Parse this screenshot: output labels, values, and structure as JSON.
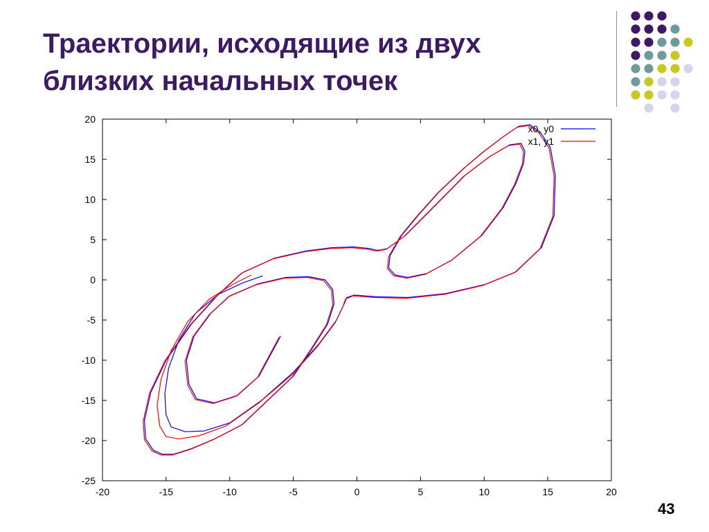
{
  "slide": {
    "title_lines": [
      "Траектории, исходящие из двух",
      "близких начальных точек"
    ],
    "page_number": "43"
  },
  "colors": {
    "title": "#3d1a66",
    "dot_purple": "#3d1a66",
    "dot_teal": "#6f9a9a",
    "dot_yellow": "#c8c81e",
    "dot_lavender": "#d4d4ea",
    "series_blue": "#0000ff",
    "series_red": "#ff0000"
  },
  "decoration": {
    "dot_grid": [
      [
        "purple",
        "purple",
        "purple",
        "",
        ""
      ],
      [
        "purple",
        "purple",
        "purple",
        "teal",
        ""
      ],
      [
        "purple",
        "purple",
        "teal",
        "teal",
        "yellow"
      ],
      [
        "purple",
        "teal",
        "teal",
        "yellow",
        ""
      ],
      [
        "teal",
        "teal",
        "yellow",
        "yellow",
        "lavender"
      ],
      [
        "teal",
        "yellow",
        "lavender",
        "lavender",
        ""
      ],
      [
        "yellow",
        "yellow",
        "lavender",
        "lavender",
        ""
      ],
      [
        "",
        "lavender",
        "",
        "lavender",
        ""
      ]
    ]
  },
  "chart_data": {
    "type": "line",
    "title": "",
    "xlabel": "",
    "ylabel": "",
    "xlim": [
      -20,
      20
    ],
    "ylim": [
      -25,
      20
    ],
    "xticks": [
      "-20",
      "-15",
      "-10",
      "-5",
      "0",
      "5",
      "10",
      "15",
      "20"
    ],
    "yticks": [
      "20",
      "15",
      "10",
      "5",
      "0",
      "-5",
      "-10",
      "-15",
      "-20",
      "-25"
    ],
    "grid": false,
    "legend_position": "top-right",
    "series": [
      {
        "name": "x0, y0",
        "color": "#0000ff",
        "x": [
          -7.4,
          -9.0,
          -10.9,
          -12.7,
          -14.0,
          -14.8,
          -15.1,
          -15.0,
          -14.6,
          -13.5,
          -12.0,
          -10.0,
          -7.5,
          -5.0,
          -3.0,
          -1.6,
          -1.0,
          -0.8,
          -0.2,
          1.5,
          4.0,
          7.0,
          10.0,
          12.5,
          14.5,
          15.5,
          15.6,
          15.2,
          14.4,
          13.6,
          12.7,
          11.5,
          10.0,
          8.5,
          6.5,
          4.8,
          3.5,
          2.6,
          2.5,
          3.0,
          4.0,
          5.5,
          7.5,
          9.8,
          11.5,
          12.5,
          13.1,
          13.2,
          12.9,
          12.0,
          10.5,
          8.5,
          6.0,
          3.8,
          2.4,
          1.8,
          1.5,
          1.0,
          -0.3,
          -2.0,
          -4.0,
          -6.5,
          -9.0,
          -11.0,
          -13.0,
          -15.0,
          -16.2,
          -16.7,
          -16.6,
          -16.0,
          -15.3,
          -14.4,
          -13.0,
          -11.2,
          -9.0,
          -7.0,
          -5.0,
          -3.5,
          -2.3,
          -1.8,
          -1.9,
          -2.5,
          -3.8,
          -5.6,
          -7.8,
          -10.0,
          -11.5,
          -12.8,
          -13.4,
          -13.2,
          -12.6,
          -11.2,
          -9.4,
          -7.7,
          -6.0
        ],
        "y": [
          0.5,
          -0.4,
          -1.8,
          -4.2,
          -7.5,
          -11.0,
          -14.2,
          -16.8,
          -18.3,
          -18.9,
          -18.8,
          -17.8,
          -15.0,
          -11.5,
          -8.0,
          -5.0,
          -3.0,
          -2.2,
          -1.9,
          -2.1,
          -2.2,
          -1.7,
          -0.6,
          1.0,
          4.0,
          8.0,
          13.0,
          16.5,
          18.4,
          19.3,
          19.1,
          17.8,
          16.0,
          14.0,
          11.0,
          8.0,
          5.5,
          3.0,
          1.5,
          0.6,
          0.3,
          0.8,
          2.5,
          5.5,
          9.0,
          12.0,
          14.5,
          16.0,
          17.0,
          16.8,
          15.4,
          13.0,
          9.0,
          5.5,
          3.9,
          3.7,
          3.7,
          3.9,
          4.1,
          4.0,
          3.6,
          2.7,
          0.9,
          -2.0,
          -5.5,
          -10.0,
          -14.0,
          -17.5,
          -19.8,
          -21.2,
          -21.7,
          -21.7,
          -21.0,
          -19.8,
          -18.0,
          -15.0,
          -12.0,
          -8.5,
          -5.5,
          -3.0,
          -1.2,
          0.0,
          0.4,
          0.3,
          -0.5,
          -2.0,
          -4.2,
          -7.0,
          -10.0,
          -13.0,
          -14.8,
          -15.3,
          -14.4,
          -12.0,
          -7.0
        ]
      },
      {
        "name": "x1, y1",
        "color": "#ff0000",
        "x": [
          -8.3,
          -9.8,
          -11.6,
          -13.3,
          -14.6,
          -15.4,
          -15.7,
          -15.5,
          -15.0,
          -14.0,
          -12.4,
          -10.3,
          -7.7,
          -5.1,
          -3.1,
          -1.7,
          -1.1,
          -0.9,
          -0.3,
          1.4,
          3.9,
          6.9,
          9.9,
          12.4,
          14.4,
          15.4,
          15.5,
          15.1,
          14.3,
          13.5,
          12.6,
          11.4,
          9.9,
          8.4,
          6.4,
          4.7,
          3.4,
          2.5,
          2.4,
          2.9,
          3.9,
          5.4,
          7.4,
          9.7,
          11.4,
          12.4,
          13.0,
          13.1,
          12.8,
          11.9,
          10.4,
          8.4,
          5.9,
          3.7,
          2.3,
          1.7,
          1.4,
          0.9,
          -0.4,
          -2.1,
          -4.1,
          -6.6,
          -9.1,
          -11.1,
          -13.1,
          -15.1,
          -16.3,
          -16.8,
          -16.7,
          -16.1,
          -15.4,
          -14.5,
          -13.1,
          -11.3,
          -9.1,
          -7.1,
          -5.1,
          -3.6,
          -2.4,
          -1.9,
          -2.0,
          -2.6,
          -3.9,
          -5.7,
          -7.9,
          -10.1,
          -11.6,
          -12.9,
          -13.5,
          -13.3,
          -12.7,
          -11.3,
          -9.5,
          -7.8,
          -6.1
        ],
        "y": [
          0.6,
          -0.6,
          -2.4,
          -5.2,
          -8.8,
          -12.4,
          -15.6,
          -18.2,
          -19.5,
          -19.8,
          -19.4,
          -18.2,
          -15.3,
          -11.8,
          -8.3,
          -5.3,
          -3.3,
          -2.4,
          -2.0,
          -2.2,
          -2.3,
          -1.8,
          -0.7,
          0.9,
          3.9,
          7.9,
          12.9,
          16.4,
          18.3,
          19.2,
          19.0,
          17.7,
          15.9,
          13.9,
          10.9,
          7.9,
          5.4,
          2.9,
          1.4,
          0.5,
          0.2,
          0.7,
          2.4,
          5.4,
          8.9,
          11.9,
          14.4,
          15.9,
          16.9,
          16.7,
          15.3,
          12.9,
          8.9,
          5.4,
          3.8,
          3.6,
          3.6,
          3.8,
          4.0,
          3.9,
          3.5,
          2.6,
          0.8,
          -2.1,
          -5.6,
          -10.1,
          -14.1,
          -17.6,
          -19.9,
          -21.3,
          -21.8,
          -21.8,
          -21.1,
          -19.9,
          -18.1,
          -15.1,
          -12.1,
          -8.6,
          -5.6,
          -3.1,
          -1.3,
          -0.1,
          0.3,
          0.2,
          -0.6,
          -2.1,
          -4.3,
          -7.1,
          -10.1,
          -13.1,
          -14.9,
          -15.4,
          -14.5,
          -12.1,
          -7.1
        ]
      }
    ]
  }
}
